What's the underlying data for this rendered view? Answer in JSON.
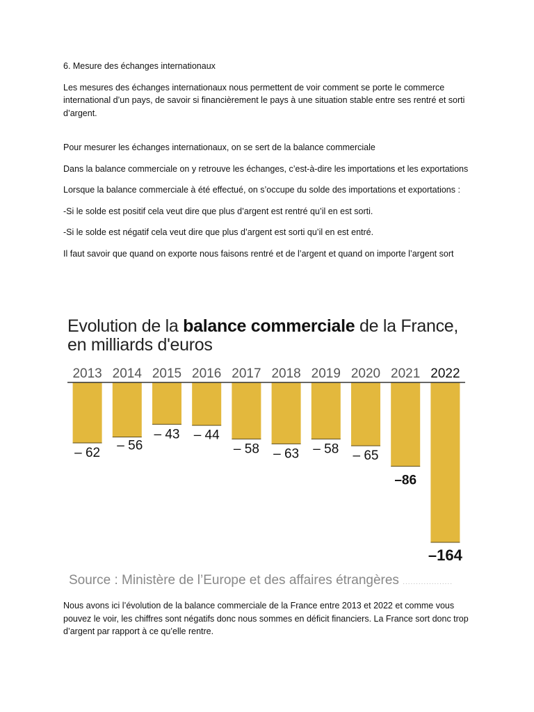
{
  "document": {
    "heading": "6. Mesure des échanges internationaux",
    "paragraphs": [
      "Les mesures des échanges internationaux nous permettent de voir comment se porte le commerce international d’un pays, de savoir si financièrement le pays à une situation stable entre ses rentré et sorti d’argent.",
      "Pour mesurer les échanges internationaux, on se sert de la balance commerciale",
      "Dans la balance commerciale on y retrouve les échanges, c’est-à-dire les importations et les exportations",
      "Lorsque la balance commerciale à été effectué, on s’occupe du solde des importations et exportations :",
      "-Si le solde est positif cela veut dire que plus d’argent est rentré qu’il en est sorti.",
      "-Si le solde est négatif cela veut dire que plus d’argent est sorti qu’il en est entré.",
      "Il faut savoir que quand on exporte nous faisons rentré et de l’argent et quand on importe l’argent sort"
    ],
    "closing": "Nous avons ici l’évolution de la balance commerciale de la France entre 2013 et 2022 et comme vous pouvez le voir, les chiffres sont négatifs donc nous sommes en déficit financiers. La France sort donc trop  d’argent par rapport à ce qu’elle rentre."
  },
  "chart_data": {
    "type": "bar",
    "title_prefix": "Evolution de la ",
    "title_bold": "balance commerciale",
    "title_suffix": " de la France,",
    "subtitle": "en milliards d'euros",
    "categories": [
      "2013",
      "2014",
      "2015",
      "2016",
      "2017",
      "2018",
      "2019",
      "2020",
      "2021",
      "2022"
    ],
    "values": [
      -62,
      -56,
      -43,
      -44,
      -58,
      -63,
      -58,
      -65,
      -86,
      -164
    ],
    "value_labels": [
      "– 62",
      "– 56",
      "– 43",
      "– 44",
      "– 58",
      "– 63",
      "– 58",
      "– 65",
      "–86",
      "–164"
    ],
    "ylim": [
      -164,
      0
    ],
    "bar_color": "#E3B83D",
    "source": "Source : Ministère de l’Europe et des affaires étrangères",
    "source_dots": "..................."
  }
}
